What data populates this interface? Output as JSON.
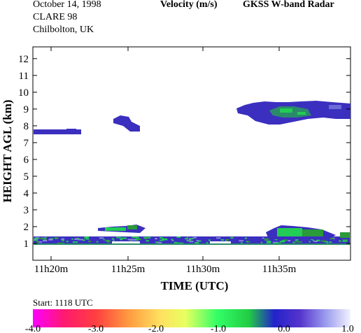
{
  "header": {
    "date": "October  14, 1998",
    "campaign": "CLARE 98",
    "location": "Chilbolton, UK",
    "quantity": "Velocity (m/s)",
    "instrument": "GKSS  W-band Radar"
  },
  "start_label": "Start: 1118 UTC",
  "chart_data": {
    "type": "heatmap",
    "title": "Velocity (m/s)",
    "xlabel": "TIME (UTC)",
    "ylabel": "HEIGHT AGL (km)",
    "x_ticks": [
      "11h20m",
      "11h25m",
      "11h30m",
      "11h35m"
    ],
    "y_ticks": [
      1,
      2,
      3,
      4,
      5,
      6,
      7,
      8,
      9,
      10,
      11,
      12
    ],
    "ylim": [
      0,
      12.7
    ],
    "colorbar": {
      "range": [
        -4.0,
        1.0
      ],
      "ticks": [
        "-4.0",
        "-3.0",
        "-2.0",
        "-1.0",
        "0.0",
        "1.0"
      ],
      "colormap": [
        "#ff00ff",
        "#ff2a2a",
        "#ffcc33",
        "#33ff66",
        "#4433cc",
        "#eeeeff"
      ]
    },
    "features": [
      {
        "name": "cirrus-left",
        "time_range": [
          "11h18m",
          "11h22m"
        ],
        "height_km": [
          7.5,
          7.8
        ],
        "velocity": "0.0"
      },
      {
        "name": "cloud-mid",
        "time_range": [
          "11h24m",
          "11h26m"
        ],
        "height_km": [
          7.8,
          8.6
        ],
        "velocity": "0.0"
      },
      {
        "name": "cloud-upper-right",
        "time_range": [
          "11h32m",
          "11h40m"
        ],
        "height_km": [
          8.2,
          9.3
        ],
        "velocity": "-1.0 to 0.0"
      },
      {
        "name": "boundary-layer",
        "time_range": [
          "11h18m",
          "11h40m"
        ],
        "height_km": [
          0.9,
          1.4
        ],
        "velocity": "-1.0 to 0.0"
      },
      {
        "name": "shallow-cloud-1",
        "time_range": [
          "11h24m",
          "11h26m"
        ],
        "height_km": [
          1.6,
          2.1
        ],
        "velocity": "-1.0"
      },
      {
        "name": "shallow-cloud-2",
        "time_range": [
          "11h33m",
          "11h38m"
        ],
        "height_km": [
          1.2,
          2.1
        ],
        "velocity": "-1.0"
      }
    ]
  }
}
